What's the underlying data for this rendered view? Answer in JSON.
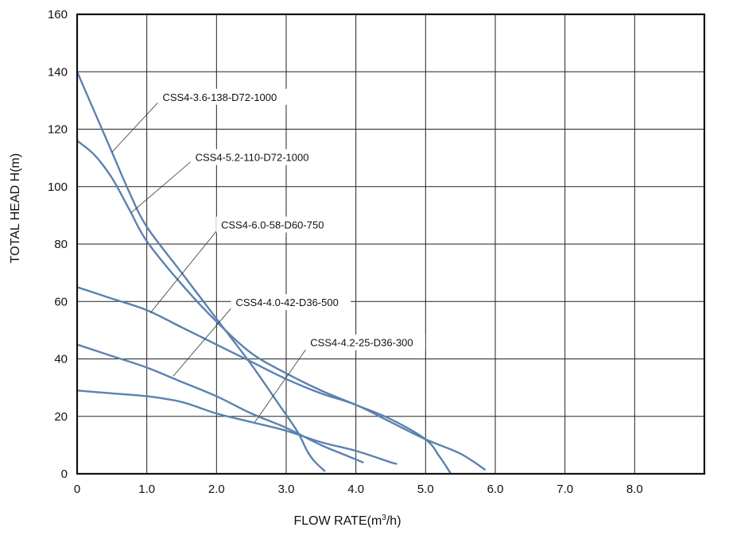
{
  "chart_data": {
    "type": "line",
    "title": "",
    "xlabel": "FLOW RATE(m",
    "xlabel_sup": "3",
    "xlabel_end": "/h)",
    "ylabel": "TOTAL HEAD H(m)",
    "xlim": [
      0,
      9
    ],
    "ylim": [
      0,
      160
    ],
    "x_ticks": [
      {
        "value": 0,
        "label": "0"
      },
      {
        "value": 1,
        "label": "1.0"
      },
      {
        "value": 2,
        "label": "2.0"
      },
      {
        "value": 3,
        "label": "3.0"
      },
      {
        "value": 4,
        "label": "4.0"
      },
      {
        "value": 5,
        "label": "5.0"
      },
      {
        "value": 6,
        "label": "6.0"
      },
      {
        "value": 7,
        "label": "7.0"
      },
      {
        "value": 8,
        "label": "8.0"
      }
    ],
    "y_ticks": [
      {
        "value": 0,
        "label": "0"
      },
      {
        "value": 20,
        "label": "20"
      },
      {
        "value": 40,
        "label": "40"
      },
      {
        "value": 60,
        "label": "60"
      },
      {
        "value": 80,
        "label": "80"
      },
      {
        "value": 100,
        "label": "100"
      },
      {
        "value": 120,
        "label": "120"
      },
      {
        "value": 140,
        "label": "140"
      },
      {
        "value": 160,
        "label": "160"
      }
    ],
    "grid": true,
    "line_color": "#5b82b0",
    "series": [
      {
        "name": "CSS4-3.6-138-D72-1000",
        "points": [
          [
            0,
            140
          ],
          [
            0.25,
            126
          ],
          [
            0.5,
            112
          ],
          [
            0.75,
            98
          ],
          [
            1.0,
            86
          ],
          [
            1.5,
            70
          ],
          [
            2.0,
            54
          ],
          [
            2.5,
            38
          ],
          [
            2.9,
            24
          ],
          [
            3.1,
            17
          ],
          [
            3.2,
            13
          ],
          [
            3.3,
            8
          ],
          [
            3.4,
            4.5
          ],
          [
            3.55,
            1
          ]
        ],
        "label_anchor": [
          0.5,
          112
        ]
      },
      {
        "name": "CSS4-5.2-110-D72-1000",
        "points": [
          [
            0,
            116
          ],
          [
            0.25,
            111
          ],
          [
            0.5,
            103
          ],
          [
            0.75,
            92
          ],
          [
            1.0,
            81
          ],
          [
            1.5,
            66
          ],
          [
            2.0,
            53
          ],
          [
            2.5,
            42
          ],
          [
            3.0,
            35
          ],
          [
            3.5,
            29
          ],
          [
            4.0,
            24
          ],
          [
            4.5,
            19
          ],
          [
            5.0,
            12
          ],
          [
            5.2,
            6
          ],
          [
            5.35,
            0.5
          ]
        ],
        "label_anchor": [
          0.78,
          91
        ]
      },
      {
        "name": "CSS4-6.0-58-D60-750",
        "points": [
          [
            0,
            65
          ],
          [
            0.5,
            61
          ],
          [
            1.0,
            57
          ],
          [
            1.5,
            51
          ],
          [
            2.0,
            45
          ],
          [
            2.5,
            39
          ],
          [
            3.0,
            33
          ],
          [
            3.5,
            28
          ],
          [
            4.0,
            24
          ],
          [
            4.5,
            18
          ],
          [
            5.0,
            12
          ],
          [
            5.5,
            7
          ],
          [
            5.85,
            1.5
          ]
        ],
        "label_anchor": [
          1.05,
          56
        ]
      },
      {
        "name": "CSS4-4.0-42-D36-500",
        "points": [
          [
            0,
            45
          ],
          [
            0.5,
            41
          ],
          [
            1.0,
            37
          ],
          [
            1.5,
            32
          ],
          [
            2.0,
            27
          ],
          [
            2.5,
            21
          ],
          [
            3.0,
            16
          ],
          [
            3.5,
            10
          ],
          [
            3.9,
            6
          ],
          [
            4.1,
            4
          ]
        ],
        "label_anchor": [
          1.38,
          34
        ]
      },
      {
        "name": "CSS4-4.2-25-D36-300",
        "points": [
          [
            0,
            29
          ],
          [
            0.5,
            28
          ],
          [
            1.0,
            27
          ],
          [
            1.5,
            25
          ],
          [
            2.0,
            21
          ],
          [
            2.5,
            18
          ],
          [
            3.0,
            15
          ],
          [
            3.5,
            11
          ],
          [
            4.0,
            8
          ],
          [
            4.5,
            4
          ],
          [
            4.58,
            3.5
          ]
        ],
        "label_anchor": [
          2.55,
          18
        ]
      }
    ],
    "annotations": [
      {
        "series": 0,
        "text": "CSS4-3.6-138-D72-1000",
        "at": [
          1.18,
          131
        ]
      },
      {
        "series": 1,
        "text": "CSS4-5.2-110-D72-1000",
        "at": [
          1.65,
          110
        ]
      },
      {
        "series": 2,
        "text": "CSS4-6.0-58-D60-750",
        "at": [
          2.02,
          86.5
        ]
      },
      {
        "series": 3,
        "text": "CSS4-4.0-42-D36-500",
        "at": [
          2.23,
          59.5
        ]
      },
      {
        "series": 4,
        "text": "CSS4-4.2-25-D36-300",
        "at": [
          3.3,
          45.5
        ]
      }
    ]
  }
}
